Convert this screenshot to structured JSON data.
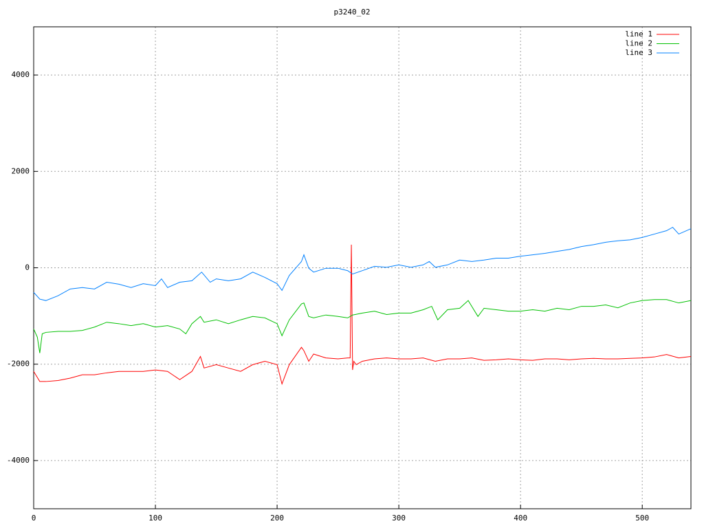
{
  "chart_data": {
    "type": "line",
    "title": "p3240_02",
    "xlim": [
      0,
      540
    ],
    "ylim": [
      -5000,
      5000
    ],
    "xticks": [
      0,
      100,
      200,
      300,
      400,
      500
    ],
    "yticks": [
      -4000,
      -2000,
      0,
      2000,
      4000
    ],
    "grid": true,
    "legend": "top-right",
    "series": [
      {
        "name": "line 1",
        "color": "#ff0000",
        "x": [
          0,
          5,
          10,
          20,
          30,
          40,
          50,
          60,
          70,
          80,
          90,
          100,
          110,
          120,
          130,
          137,
          140,
          150,
          160,
          170,
          180,
          190,
          200,
          204,
          210,
          220,
          222,
          226,
          230,
          240,
          250,
          258,
          260,
          261,
          262,
          263,
          265,
          270,
          280,
          290,
          300,
          310,
          320,
          330,
          340,
          350,
          360,
          370,
          380,
          390,
          400,
          410,
          420,
          430,
          440,
          450,
          460,
          470,
          480,
          490,
          500,
          510,
          520,
          530,
          540
        ],
        "values": [
          -2150,
          -2360,
          -2360,
          -2340,
          -2290,
          -2220,
          -2220,
          -2180,
          -2150,
          -2150,
          -2150,
          -2120,
          -2150,
          -2320,
          -2150,
          -1840,
          -2080,
          -2010,
          -2080,
          -2150,
          -2010,
          -1940,
          -2010,
          -2410,
          -2010,
          -1650,
          -1720,
          -1940,
          -1790,
          -1870,
          -1890,
          -1870,
          -1870,
          480,
          -2120,
          -1940,
          -2010,
          -1940,
          -1890,
          -1870,
          -1890,
          -1890,
          -1870,
          -1940,
          -1890,
          -1890,
          -1870,
          -1920,
          -1910,
          -1890,
          -1910,
          -1920,
          -1890,
          -1890,
          -1910,
          -1890,
          -1880,
          -1890,
          -1890,
          -1880,
          -1870,
          -1850,
          -1800,
          -1870,
          -1840
        ]
      },
      {
        "name": "line 2",
        "color": "#00c000",
        "x": [
          0,
          3,
          5,
          7,
          10,
          20,
          30,
          40,
          50,
          60,
          70,
          80,
          90,
          100,
          110,
          120,
          125,
          130,
          137,
          140,
          150,
          160,
          170,
          180,
          190,
          200,
          204,
          210,
          220,
          222,
          226,
          230,
          240,
          250,
          258,
          262,
          270,
          280,
          290,
          300,
          310,
          320,
          327,
          332,
          340,
          350,
          357,
          365,
          370,
          380,
          390,
          400,
          410,
          420,
          430,
          440,
          450,
          460,
          470,
          480,
          490,
          500,
          510,
          520,
          530,
          540
        ],
        "values": [
          -1270,
          -1440,
          -1770,
          -1370,
          -1340,
          -1320,
          -1320,
          -1300,
          -1230,
          -1130,
          -1160,
          -1200,
          -1160,
          -1230,
          -1200,
          -1270,
          -1370,
          -1160,
          -1010,
          -1130,
          -1080,
          -1160,
          -1080,
          -1010,
          -1040,
          -1160,
          -1410,
          -1080,
          -750,
          -730,
          -1010,
          -1040,
          -980,
          -1010,
          -1040,
          -980,
          -940,
          -900,
          -970,
          -940,
          -940,
          -870,
          -800,
          -1080,
          -870,
          -840,
          -680,
          -1010,
          -840,
          -870,
          -900,
          -900,
          -870,
          -900,
          -840,
          -870,
          -800,
          -800,
          -770,
          -830,
          -730,
          -680,
          -660,
          -660,
          -730,
          -680
        ]
      },
      {
        "name": "line 3",
        "color": "#0080ff",
        "x": [
          0,
          5,
          10,
          20,
          30,
          40,
          50,
          60,
          70,
          80,
          90,
          100,
          105,
          110,
          120,
          130,
          138,
          145,
          150,
          160,
          170,
          180,
          190,
          200,
          204,
          210,
          220,
          222,
          226,
          230,
          240,
          250,
          258,
          262,
          270,
          280,
          290,
          300,
          310,
          320,
          325,
          330,
          340,
          350,
          360,
          370,
          380,
          390,
          400,
          410,
          420,
          430,
          440,
          450,
          460,
          470,
          480,
          490,
          500,
          510,
          520,
          525,
          530,
          540
        ],
        "values": [
          -510,
          -650,
          -680,
          -580,
          -440,
          -410,
          -440,
          -300,
          -340,
          -410,
          -330,
          -370,
          -230,
          -410,
          -300,
          -270,
          -90,
          -300,
          -230,
          -270,
          -230,
          -90,
          -200,
          -330,
          -470,
          -160,
          130,
          270,
          -10,
          -90,
          -10,
          -10,
          -60,
          -130,
          -60,
          30,
          10,
          60,
          10,
          60,
          130,
          10,
          60,
          160,
          130,
          160,
          200,
          200,
          240,
          270,
          300,
          340,
          380,
          440,
          480,
          530,
          560,
          580,
          630,
          700,
          770,
          840,
          700,
          810
        ]
      }
    ]
  }
}
